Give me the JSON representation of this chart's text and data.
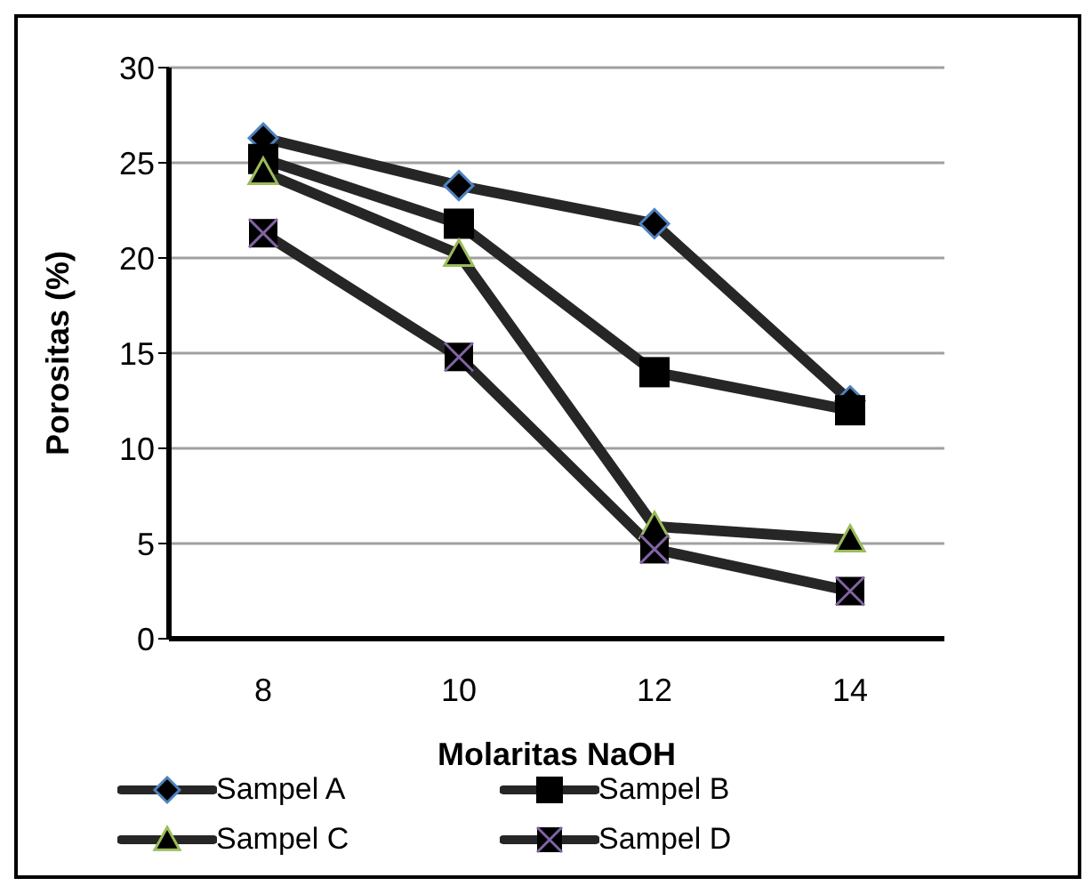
{
  "chart_data": {
    "type": "line",
    "xlabel": "Molaritas NaOH",
    "ylabel": "Porositas (%)",
    "categories": [
      "8",
      "10",
      "12",
      "14"
    ],
    "ylim": [
      0,
      30
    ],
    "yticks": [
      0,
      5,
      10,
      15,
      20,
      25,
      30
    ],
    "grid": "y",
    "legend": "bottom",
    "line_style": "solid",
    "series": [
      {
        "name": "Sampel A",
        "color": "#4f81bd",
        "marker": "diamond",
        "values": [
          26.3,
          23.8,
          21.8,
          12.5
        ]
      },
      {
        "name": "Sampel B",
        "color": "#000000",
        "marker": "square",
        "values": [
          25.2,
          21.8,
          14.0,
          12.0
        ]
      },
      {
        "name": "Sampel C",
        "color": "#9bbb59",
        "marker": "triangle",
        "values": [
          24.5,
          20.2,
          5.9,
          5.2
        ]
      },
      {
        "name": "Sampel D",
        "color": "#8064a2",
        "marker": "cross",
        "values": [
          21.3,
          14.8,
          4.7,
          2.5
        ]
      }
    ]
  }
}
